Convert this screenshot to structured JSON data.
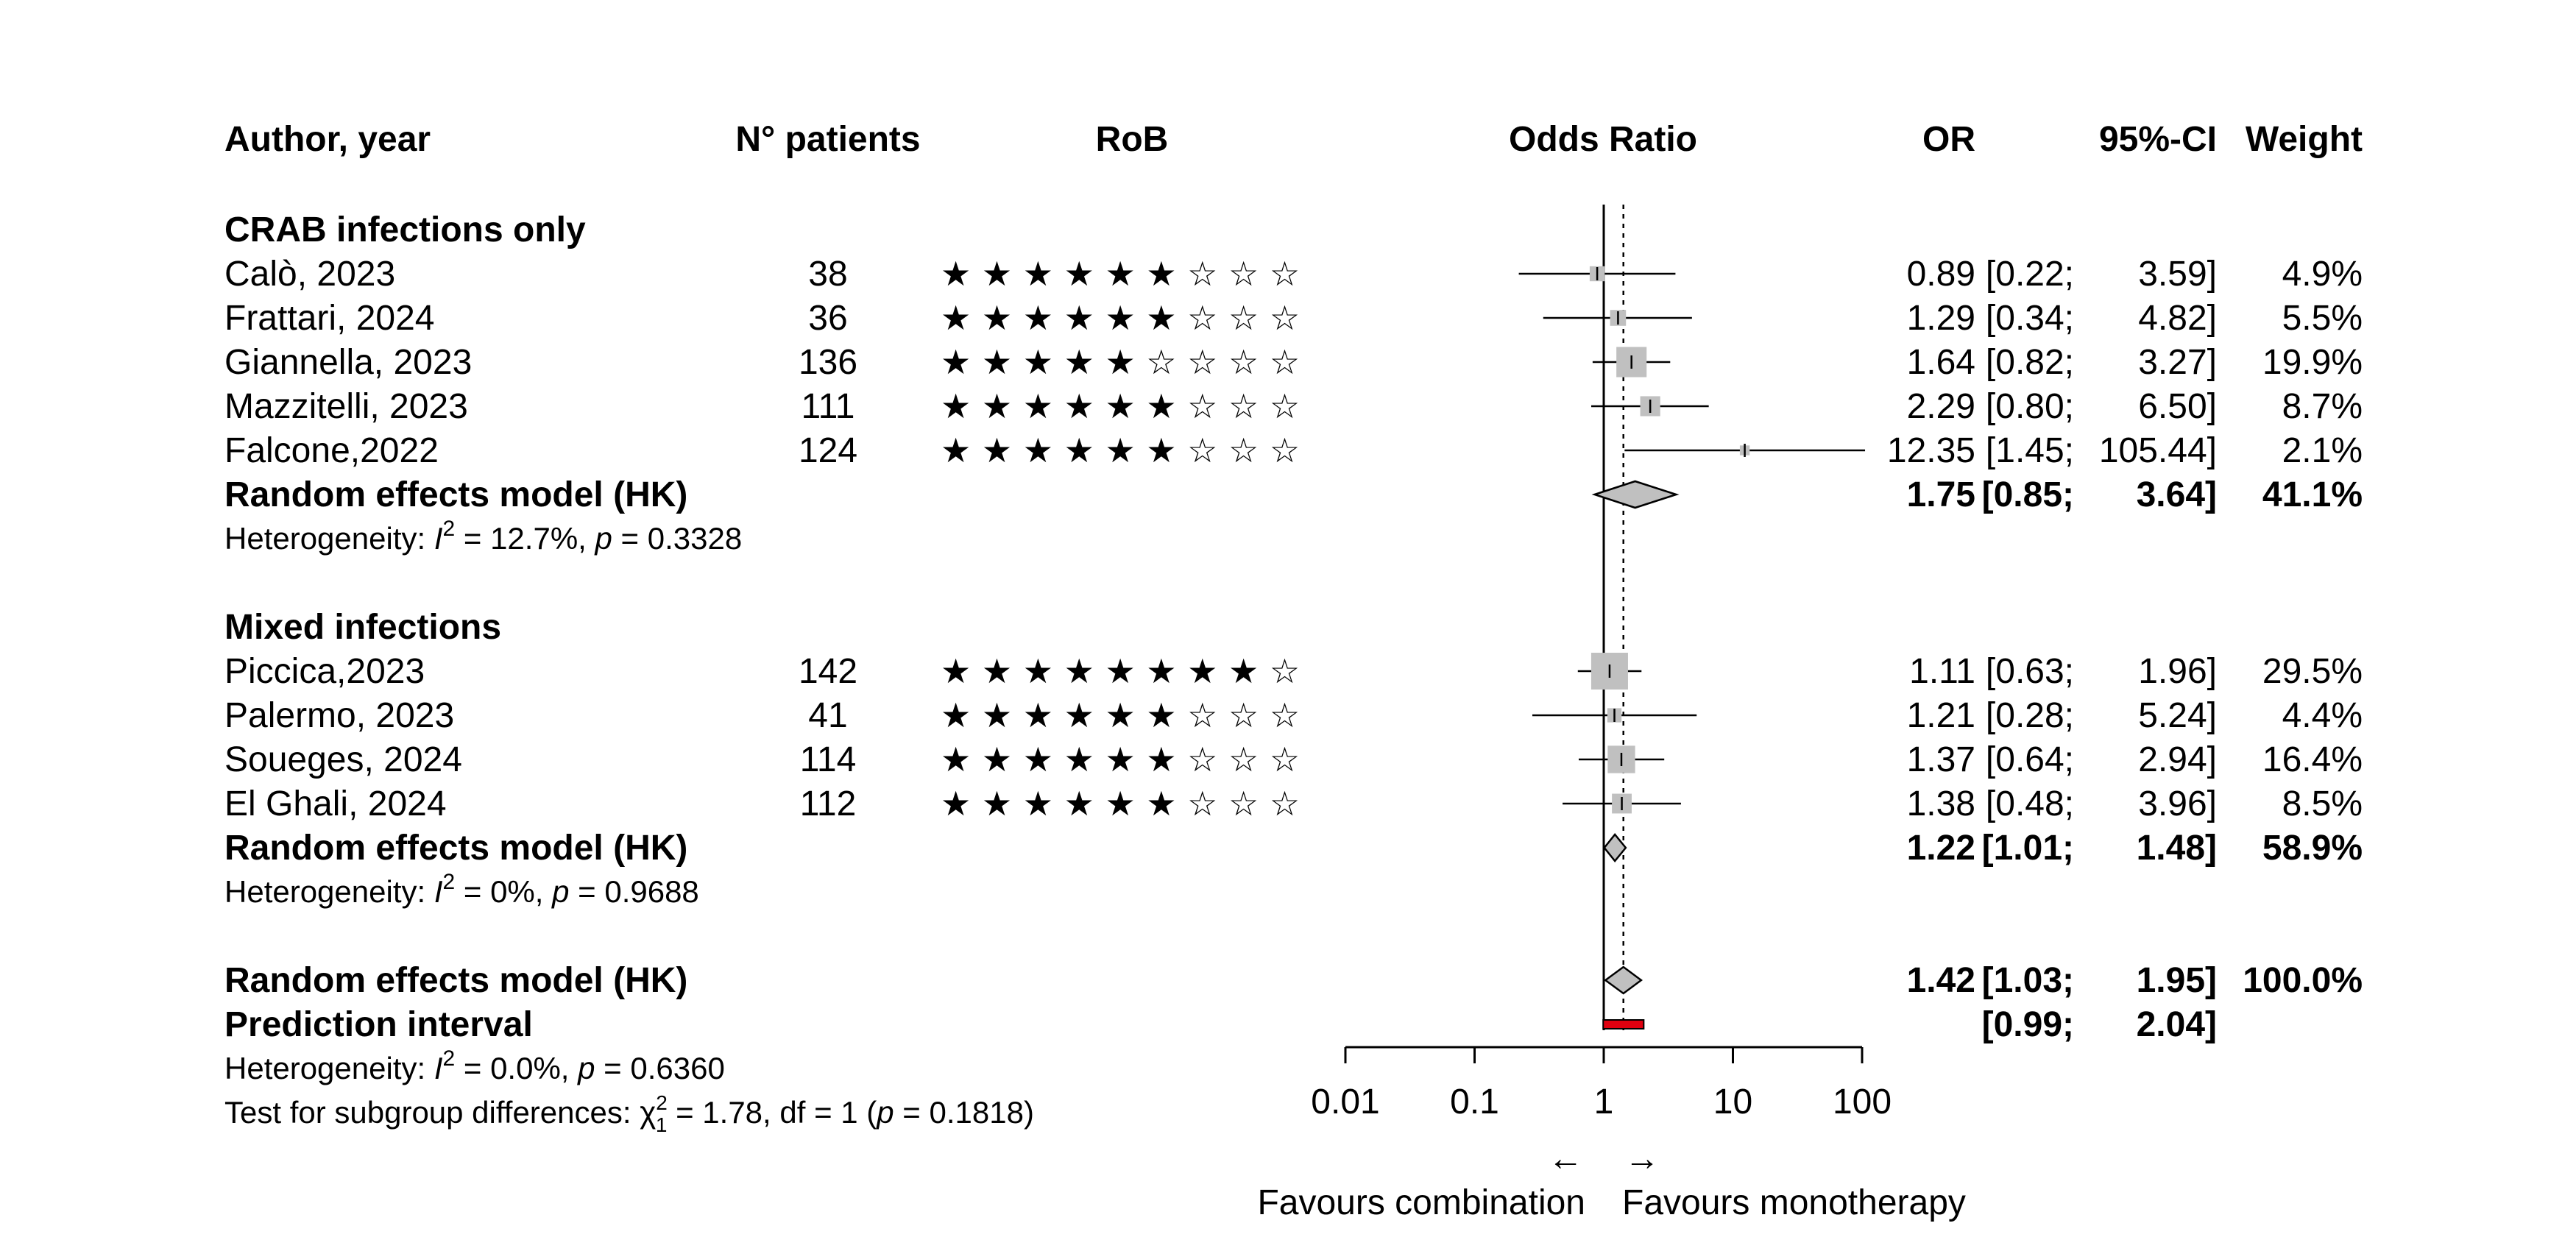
{
  "chart_data": {
    "type": "forest",
    "columns": {
      "author": "Author, year",
      "patients": "N° patients",
      "rob": "RoB",
      "plot": "Odds Ratio",
      "or": "OR",
      "ci": "95%-CI",
      "weight": "Weight"
    },
    "x_scale": "log",
    "xlim": [
      0.01,
      100
    ],
    "reference_line": 1,
    "pooled_line": 1.42,
    "ticks": [
      {
        "value": 0.01,
        "label": "0.01"
      },
      {
        "value": 0.1,
        "label": "0.1"
      },
      {
        "value": 1,
        "label": "1"
      },
      {
        "value": 10,
        "label": "10"
      },
      {
        "value": 100,
        "label": "100"
      }
    ],
    "favours_left": "Favours combination",
    "favours_right": "Favours monotherapy",
    "arrow_left": "←",
    "arrow_right": "→",
    "groups": [
      {
        "title": "CRAB infections only",
        "studies": [
          {
            "author": "Calò, 2023",
            "n": "38",
            "rob": "★ ★ ★ ★ ★ ★ ☆ ☆ ☆",
            "or": 0.89,
            "lo": 0.22,
            "hi": 3.59,
            "weight": 4.9,
            "or_text": "0.89",
            "ci_lo_text": "[0.22;",
            "ci_hi_text": "3.59]",
            "weight_text": "4.9%"
          },
          {
            "author": "Frattari, 2024",
            "n": "36",
            "rob": "★ ★ ★ ★ ★ ★ ☆ ☆ ☆",
            "or": 1.29,
            "lo": 0.34,
            "hi": 4.82,
            "weight": 5.5,
            "or_text": "1.29",
            "ci_lo_text": "[0.34;",
            "ci_hi_text": "4.82]",
            "weight_text": "5.5%"
          },
          {
            "author": "Giannella, 2023",
            "n": "136",
            "rob": "★ ★ ★ ★ ★ ☆ ☆ ☆ ☆",
            "or": 1.64,
            "lo": 0.82,
            "hi": 3.27,
            "weight": 19.9,
            "or_text": "1.64",
            "ci_lo_text": "[0.82;",
            "ci_hi_text": "3.27]",
            "weight_text": "19.9%"
          },
          {
            "author": "Mazzitelli, 2023",
            "n": "111",
            "rob": "★ ★ ★ ★ ★ ★ ☆ ☆ ☆",
            "or": 2.29,
            "lo": 0.8,
            "hi": 6.5,
            "weight": 8.7,
            "or_text": "2.29",
            "ci_lo_text": "[0.80;",
            "ci_hi_text": "6.50]",
            "weight_text": "8.7%"
          },
          {
            "author": "Falcone,2022",
            "n": "124",
            "rob": "★ ★ ★ ★ ★ ★ ☆ ☆ ☆",
            "or": 12.35,
            "lo": 1.45,
            "hi": 105.44,
            "weight": 2.1,
            "or_text": "12.35",
            "ci_lo_text": "[1.45;",
            "ci_hi_text": "105.44]",
            "weight_text": "2.1%"
          }
        ],
        "summary": {
          "label": "Random effects model (HK)",
          "or": 1.75,
          "lo": 0.85,
          "hi": 3.64,
          "or_text": "1.75",
          "ci_lo_text": "[0.85;",
          "ci_hi_text": "3.64]",
          "weight_text": "41.1%"
        },
        "heterogeneity": {
          "prefix": "Heterogeneity: ",
          "i2_text": " = 12.7%, ",
          "p_text": " = 0.3328"
        }
      },
      {
        "title": "Mixed infections",
        "studies": [
          {
            "author": "Piccica,2023",
            "n": "142",
            "rob": "★ ★ ★ ★ ★ ★ ★ ★ ☆",
            "or": 1.11,
            "lo": 0.63,
            "hi": 1.96,
            "weight": 29.5,
            "or_text": "1.11",
            "ci_lo_text": "[0.63;",
            "ci_hi_text": "1.96]",
            "weight_text": "29.5%"
          },
          {
            "author": "Palermo, 2023",
            "n": "41",
            "rob": "★ ★ ★ ★ ★ ★ ☆ ☆ ☆",
            "or": 1.21,
            "lo": 0.28,
            "hi": 5.24,
            "weight": 4.4,
            "or_text": "1.21",
            "ci_lo_text": "[0.28;",
            "ci_hi_text": "5.24]",
            "weight_text": "4.4%"
          },
          {
            "author": "Soueges, 2024",
            "n": "114",
            "rob": "★ ★ ★ ★ ★ ★ ☆ ☆ ☆",
            "or": 1.37,
            "lo": 0.64,
            "hi": 2.94,
            "weight": 16.4,
            "or_text": "1.37",
            "ci_lo_text": "[0.64;",
            "ci_hi_text": "2.94]",
            "weight_text": "16.4%"
          },
          {
            "author": "El Ghali, 2024",
            "n": "112",
            "rob": "★ ★ ★ ★ ★ ★ ☆ ☆ ☆",
            "or": 1.38,
            "lo": 0.48,
            "hi": 3.96,
            "weight": 8.5,
            "or_text": "1.38",
            "ci_lo_text": "[0.48;",
            "ci_hi_text": "3.96]",
            "weight_text": "8.5%"
          }
        ],
        "summary": {
          "label": "Random effects model (HK)",
          "or": 1.22,
          "lo": 1.01,
          "hi": 1.48,
          "or_text": "1.22",
          "ci_lo_text": "[1.01;",
          "ci_hi_text": "1.48]",
          "weight_text": "58.9%"
        },
        "heterogeneity": {
          "prefix": "Heterogeneity: ",
          "i2_text": " = 0%, ",
          "p_text": " = 0.9688"
        }
      }
    ],
    "overall": {
      "label": "Random effects model (HK)",
      "or": 1.42,
      "lo": 1.03,
      "hi": 1.95,
      "or_text": "1.42",
      "ci_lo_text": "[1.03;",
      "ci_hi_text": "1.95]",
      "weight_text": "100.0%"
    },
    "prediction_interval": {
      "label": "Prediction interval",
      "lo": 0.99,
      "hi": 2.04,
      "ci_lo_text": "[0.99;",
      "ci_hi_text": "2.04]",
      "color": "#e0000f"
    },
    "overall_heterogeneity": {
      "prefix": "Heterogeneity: ",
      "i2_text": " = 0.0%, ",
      "p_text": " = 0.6360"
    },
    "subgroup_test": {
      "prefix": "Test for subgroup differences: ",
      "chi_text": " = 1.78, df = 1 (",
      "p_text": " = 0.1818)"
    },
    "colors": {
      "square": "#c0c0c0",
      "diamond": "#c0c0c0",
      "line": "#000000"
    }
  }
}
